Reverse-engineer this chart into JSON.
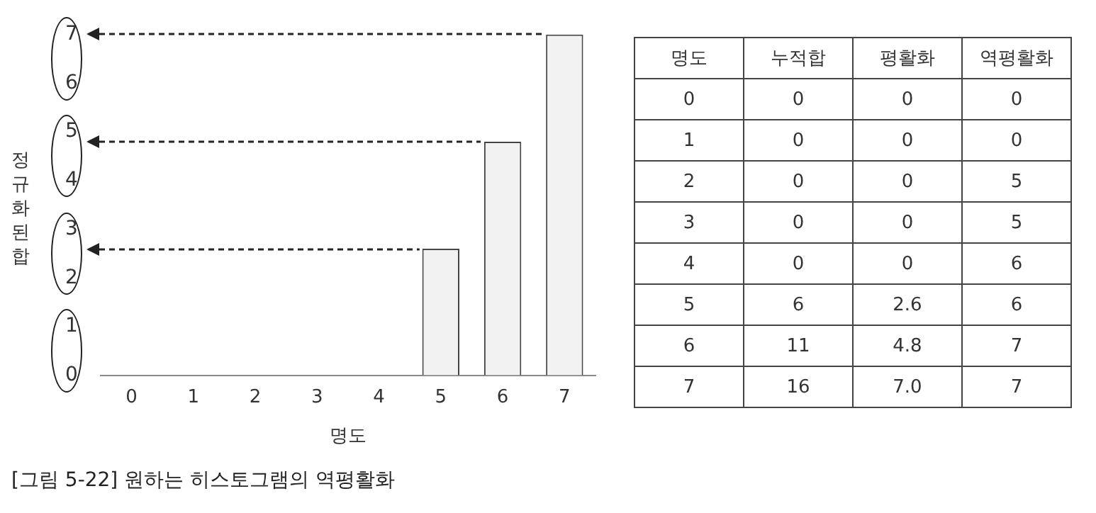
{
  "chart_data": [
    {
      "type": "bar",
      "xlabel": "명도",
      "ylabel": "정규화된 합",
      "categories": [
        "0",
        "1",
        "2",
        "3",
        "4",
        "5",
        "6",
        "7"
      ],
      "values": [
        0,
        0,
        0,
        0,
        0,
        2.6,
        4.8,
        7.0
      ],
      "color": "#f2f2f2",
      "ylim": [
        0,
        7
      ],
      "yticks": [
        0,
        1,
        2,
        3,
        4,
        5,
        6,
        7
      ],
      "legend": false,
      "annotations": [
        "[그림 5-22] 원하는 히스토그램의 역평활화"
      ]
    },
    {
      "type": "heatmap",
      "ylabel": "명도",
      "categories": [
        "누적합",
        "평활화",
        "역평활화"
      ],
      "y_categories": [
        "0",
        "1",
        "2",
        "3",
        "4",
        "5",
        "6",
        "7"
      ],
      "cells": [
        [
          0,
          0,
          0
        ],
        [
          0,
          0,
          0
        ],
        [
          0,
          0,
          5
        ],
        [
          0,
          0,
          5
        ],
        [
          0,
          0,
          6
        ],
        [
          6,
          2.6,
          6
        ],
        [
          11,
          4.8,
          7
        ],
        [
          16,
          7.0,
          7
        ]
      ],
      "cell_labels": [
        [
          "0",
          "0",
          "0"
        ],
        [
          "0",
          "0",
          "0"
        ],
        [
          "0",
          "0",
          "5"
        ],
        [
          "0",
          "0",
          "5"
        ],
        [
          "0",
          "0",
          "6"
        ],
        [
          "6",
          "2.6",
          "6"
        ],
        [
          "11",
          "4.8",
          "7"
        ],
        [
          "16",
          "7.0",
          "7"
        ]
      ]
    }
  ]
}
